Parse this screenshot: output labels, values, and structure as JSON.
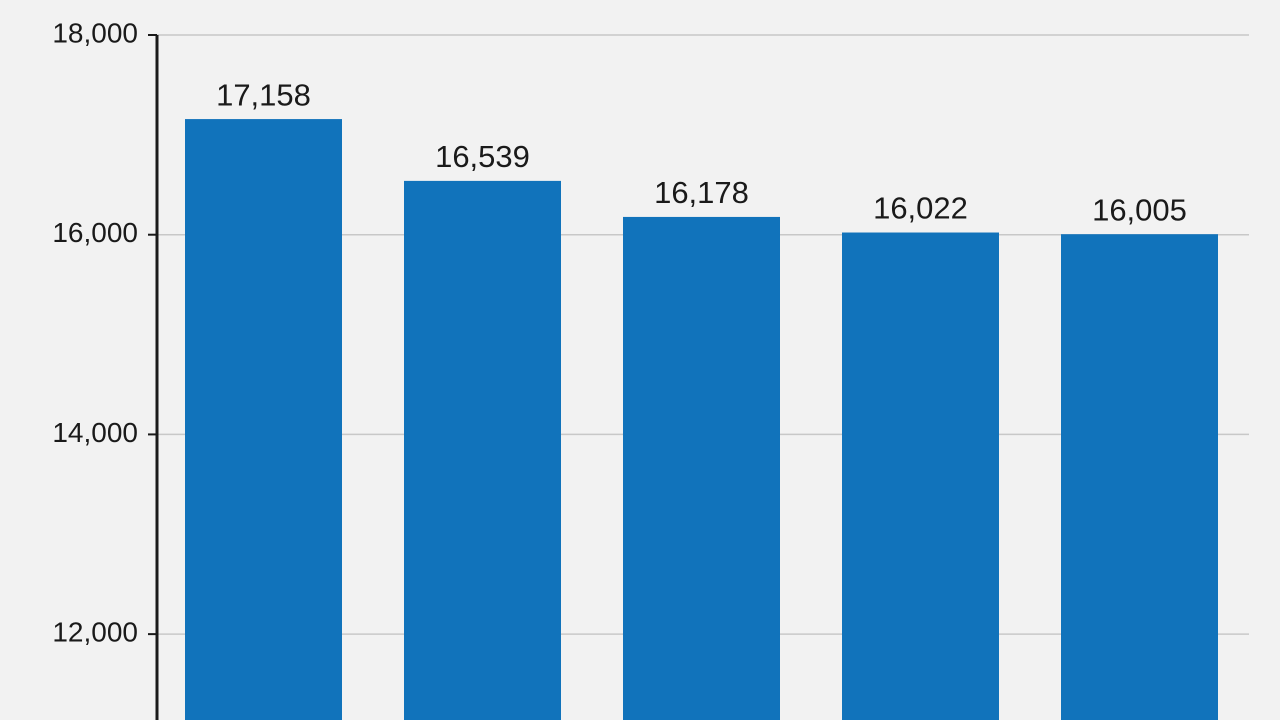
{
  "chart_data": {
    "type": "bar",
    "categories": [
      null,
      null,
      null,
      null,
      null
    ],
    "values": [
      17158,
      16539,
      16178,
      16022,
      16005
    ],
    "value_labels": [
      "17,158",
      "16,539",
      "16,178",
      "16,022",
      "16,005"
    ],
    "color": "#1173bb",
    "ylim": [
      11140,
      18000
    ],
    "yticks": [
      {
        "value": 12000,
        "label": "12,000"
      },
      {
        "value": 14000,
        "label": "14,000"
      },
      {
        "value": 16000,
        "label": "16,000"
      },
      {
        "value": 18000,
        "label": "18,000"
      }
    ],
    "grid": true
  }
}
